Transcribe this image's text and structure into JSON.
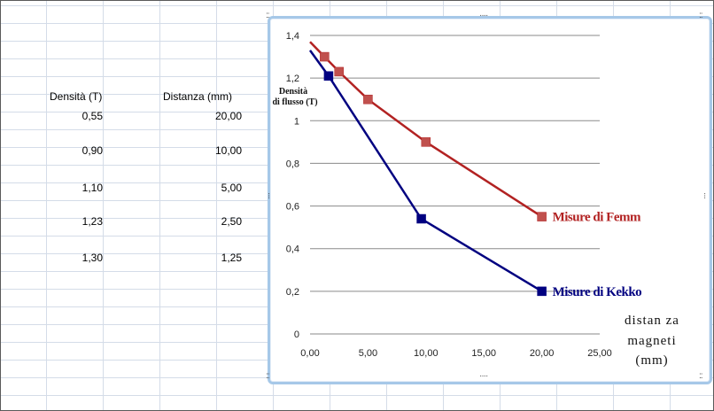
{
  "table": {
    "headers": [
      "Densità (T)",
      "Distanza (mm)"
    ],
    "rows": [
      [
        "0,55",
        "20,00"
      ],
      [
        "0,90",
        "10,00"
      ],
      [
        "1,10",
        "5,00"
      ],
      [
        "1,23",
        "2,50"
      ],
      [
        "1,30",
        "1,25"
      ]
    ]
  },
  "chart_data": {
    "type": "line",
    "ylabel": "Densità di flusso (T)",
    "xlabel": "distanza magneti (mm)",
    "xlim": [
      0,
      25
    ],
    "ylim": [
      0,
      1.4
    ],
    "x_ticks": [
      "0,00",
      "5,00",
      "10,00",
      "15,00",
      "20,00",
      "25,00"
    ],
    "y_ticks": [
      "0",
      "0,2",
      "0,4",
      "0,6",
      "0,8",
      "1",
      "1,2",
      "1,4"
    ],
    "grid": "horizontal",
    "series": [
      {
        "name": "Misure di Femm",
        "color": "#b22222",
        "marker_color": "#c0504d",
        "x": [
          1.25,
          2.5,
          5,
          10,
          20
        ],
        "y": [
          1.3,
          1.23,
          1.1,
          0.9,
          0.55
        ],
        "line_start": [
          0,
          1.37
        ]
      },
      {
        "name": "Misure di Kekko",
        "color": "#000080",
        "marker_color": "#000080",
        "x": [
          1.6,
          9.6,
          20
        ],
        "y": [
          1.21,
          0.54,
          0.2
        ],
        "line_start": [
          0,
          1.33
        ]
      }
    ]
  }
}
